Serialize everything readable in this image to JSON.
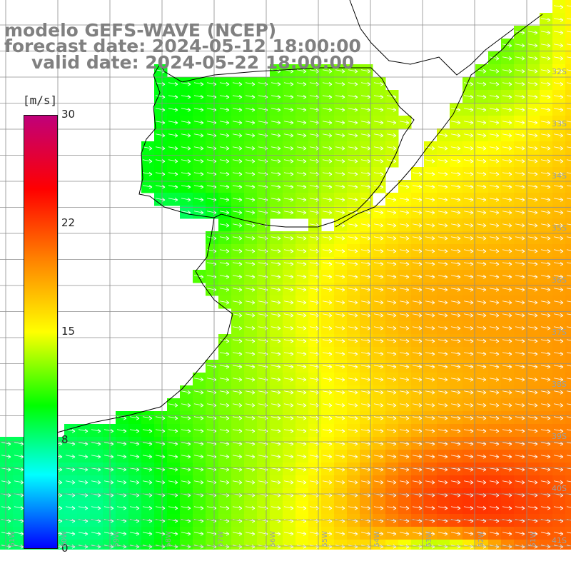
{
  "title": {
    "line1": "modelo GEFS-WAVE (NCEP)",
    "line2": "forecast date: 2024-05-12 18:00:00",
    "line3": "valid date: 2024-05-22 18:00:00"
  },
  "colorbar": {
    "unit": "[m/s]",
    "ticks": [
      "30",
      "22",
      "15",
      "8",
      "0"
    ],
    "tick_values": [
      30,
      22,
      15,
      8,
      0
    ],
    "range": [
      0,
      30
    ],
    "colors": [
      "#0000ff",
      "#00ffff",
      "#00ff00",
      "#ffff00",
      "#ff8000",
      "#ff0000",
      "#c0007a"
    ]
  },
  "map": {
    "latitude_labels": [
      "32S",
      "33S",
      "34S",
      "35S",
      "36S",
      "37S",
      "38S",
      "39S",
      "40S",
      "41S"
    ],
    "longitude_labels": [
      "61W",
      "60W",
      "59W",
      "58W",
      "57W",
      "56W",
      "55W",
      "54W",
      "53W",
      "52W",
      "51W"
    ],
    "land_color": "#ffffff",
    "grid_color": "#8c8c8c",
    "coast_color": "#000000",
    "vector_color": "#ffffff",
    "field": "wind speed",
    "vector_direction": "east"
  }
}
